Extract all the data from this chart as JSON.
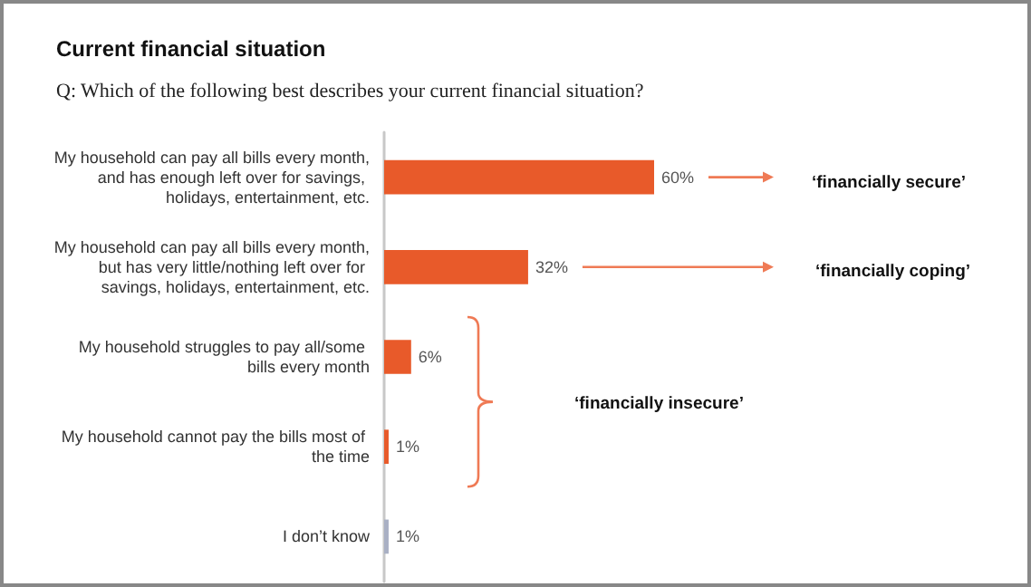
{
  "chart_data": {
    "type": "bar",
    "orientation": "horizontal",
    "title": "Current financial situation",
    "subtitle": "Q: Which of the following best describes your current financial situation?",
    "categories": [
      "My household can pay all bills every month, and has enough left over for savings, holidays, entertainment, etc.",
      "My household can pay all bills every month, but has very little/nothing left over for savings, holidays, entertainment, etc.",
      "My household struggles to pay all/some bills every month",
      "My household cannot pay the bills most of the time",
      "I don’t know"
    ],
    "values": [
      60,
      32,
      6,
      1,
      1
    ],
    "colors": [
      "#e85a2a",
      "#e85a2a",
      "#e85a2a",
      "#e85a2a",
      "#a9b0c4"
    ],
    "value_labels": [
      "60%",
      "32%",
      "6%",
      "1%",
      "1%"
    ],
    "annotations": [
      "‘financially secure’",
      "‘financially coping’",
      "‘financially insecure’"
    ],
    "grid": false
  }
}
